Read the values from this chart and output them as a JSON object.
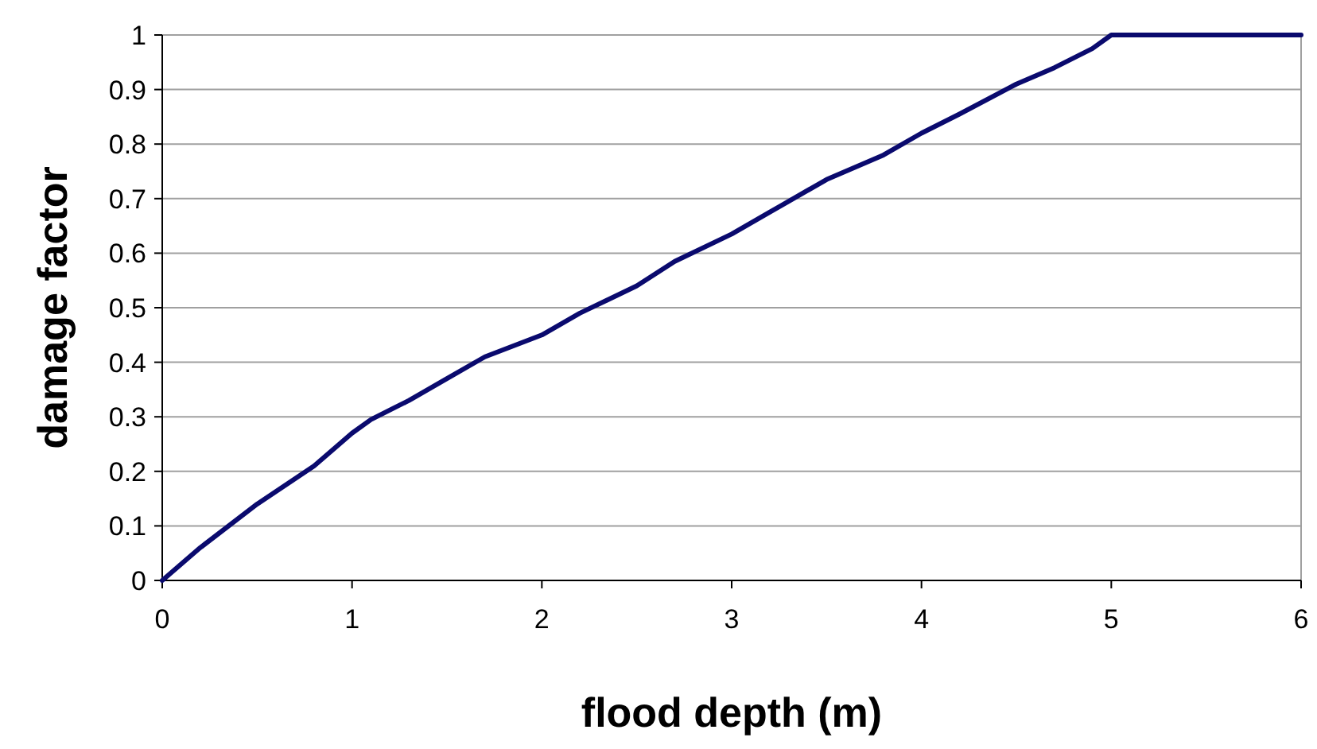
{
  "chart_data": {
    "type": "line",
    "xlabel": "flood depth (m)",
    "ylabel": "damage factor",
    "x": [
      0,
      0.2,
      0.5,
      0.8,
      1,
      1.1,
      1.3,
      1.5,
      1.7,
      2,
      2.2,
      2.5,
      2.7,
      3,
      3.2,
      3.5,
      3.8,
      4,
      4.2,
      4.5,
      4.7,
      4.9,
      5,
      6
    ],
    "series": [
      {
        "color": "#0a0a6e",
        "values": [
          0,
          0.06,
          0.14,
          0.21,
          0.27,
          0.295,
          0.33,
          0.37,
          0.41,
          0.45,
          0.49,
          0.54,
          0.585,
          0.635,
          0.675,
          0.735,
          0.78,
          0.82,
          0.855,
          0.91,
          0.94,
          0.975,
          1,
          1
        ]
      }
    ],
    "xlim": [
      0,
      6
    ],
    "xticks": [
      0,
      1,
      2,
      3,
      4,
      5,
      6
    ],
    "ylim": [
      0,
      1
    ],
    "yticks": [
      0,
      0.1,
      0.2,
      0.3,
      0.4,
      0.5,
      0.6,
      0.7,
      0.8,
      0.9,
      1
    ],
    "grid": "y",
    "marker": "none",
    "line_style": "solid"
  }
}
